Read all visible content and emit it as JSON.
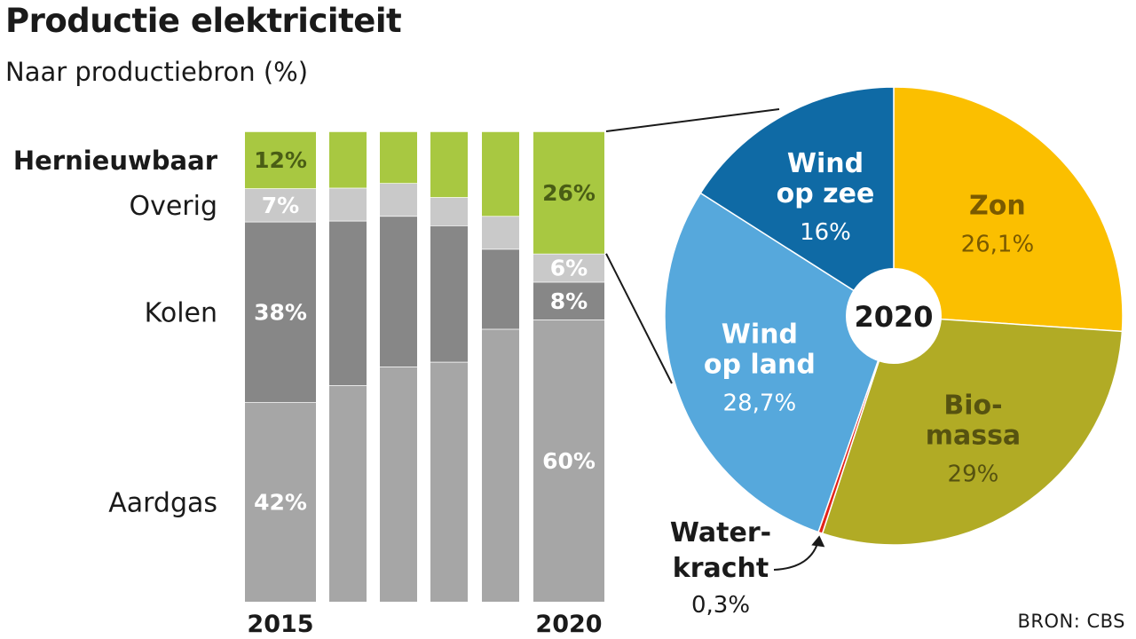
{
  "header": {
    "title": "Productie elektriciteit",
    "subtitle": "Naar productiebron (%)"
  },
  "source": "BRON: CBS",
  "chart_data": [
    {
      "type": "bar",
      "stacked": true,
      "categories": [
        "2015",
        "",
        "",
        "",
        "",
        "2020"
      ],
      "category_labels": [
        "2015",
        "2020"
      ],
      "series": [
        {
          "name": "Aardgas",
          "label": "Aardgas",
          "color": "#a6a6a6",
          "values": [
            42,
            46,
            50,
            51,
            58,
            60
          ]
        },
        {
          "name": "Kolen",
          "label": "Kolen",
          "color": "#878787",
          "values": [
            38,
            35,
            32,
            29,
            17,
            8
          ]
        },
        {
          "name": "Overig",
          "label": "Overig",
          "color": "#c9c9c9",
          "values": [
            7,
            7,
            7,
            6,
            7,
            6
          ]
        },
        {
          "name": "Hernieuwbaar",
          "label": "Hernieuwbaar",
          "color": "#a8c841",
          "values": [
            12,
            12,
            11,
            14,
            18,
            26
          ]
        }
      ],
      "data_labels": [
        {
          "category": "2015",
          "series": "Hernieuwbaar",
          "text": "12%"
        },
        {
          "category": "2015",
          "series": "Overig",
          "text": "7%"
        },
        {
          "category": "2015",
          "series": "Kolen",
          "text": "38%"
        },
        {
          "category": "2015",
          "series": "Aardgas",
          "text": "42%"
        },
        {
          "category": "2020",
          "series": "Hernieuwbaar",
          "text": "26%"
        },
        {
          "category": "2020",
          "series": "Overig",
          "text": "6%"
        },
        {
          "category": "2020",
          "series": "Kolen",
          "text": "8%"
        },
        {
          "category": "2020",
          "series": "Aardgas",
          "text": "60%"
        }
      ]
    },
    {
      "type": "pie",
      "donut": true,
      "center_label": "2020",
      "slices": [
        {
          "name": "Zon",
          "label_lines": [
            "Zon"
          ],
          "value": 26.1,
          "value_label": "26,1%",
          "color": "#fbbf00",
          "text_color": "#7a5a00"
        },
        {
          "name": "Bio-massa",
          "label_lines": [
            "Bio-",
            "massa"
          ],
          "value": 29,
          "value_label": "29%",
          "color": "#b1ab25",
          "text_color": "#565210"
        },
        {
          "name": "Water-kracht",
          "label_lines": [
            "Water-",
            "kracht"
          ],
          "value": 0.3,
          "value_label": "0,3%",
          "color": "#e2231a",
          "text_color": "#1a1a1a"
        },
        {
          "name": "Wind op land",
          "label_lines": [
            "Wind",
            "op land"
          ],
          "value": 28.7,
          "value_label": "28,7%",
          "color": "#56a8dc",
          "text_color": "#ffffff"
        },
        {
          "name": "Wind op zee",
          "label_lines": [
            "Wind",
            "op zee"
          ],
          "value": 16,
          "value_label": "16%",
          "color": "#0f6aa5",
          "text_color": "#ffffff"
        }
      ]
    }
  ]
}
